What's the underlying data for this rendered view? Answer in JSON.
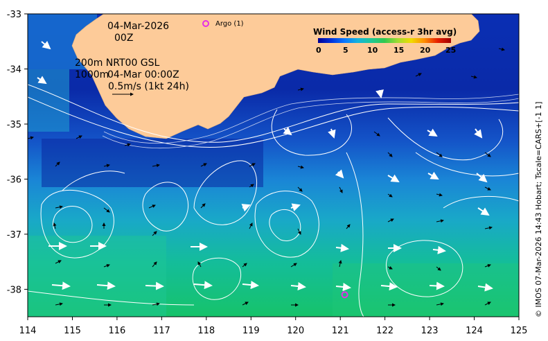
{
  "map": {
    "date_line": "04-Mar-2026",
    "time_line": "00Z",
    "depth_line_1": "200m  NRT00 GSL",
    "depth_line_2_depth": "1000m",
    "depth_line_2_time": "04-Mar 00:00Z",
    "scale_label": "0.5m/s (1kt 24h)",
    "argo_label": "Argo (1)",
    "credit": "© IMOS 07-Mar-2026 14:43 Hobart; Tscale=CARS+[-1 1]",
    "lon_range": [
      114,
      125
    ],
    "lat_range": [
      -38.5,
      -33
    ],
    "x_ticks": [
      "114",
      "115",
      "116",
      "117",
      "118",
      "119",
      "120",
      "121",
      "122",
      "123",
      "124",
      "125"
    ],
    "y_ticks": [
      "-33",
      "-34",
      "-35",
      "-36",
      "-37",
      "-38"
    ],
    "argo_float": {
      "lon": 121.1,
      "lat": -38.1
    },
    "colors": {
      "land": "#fdcb99",
      "argo": "#e62ee6",
      "contour": "#ffffff",
      "arrow_strong": "#ffffff",
      "arrow_weak": "#000000"
    }
  },
  "legend": {
    "title": "Wind Speed (access-r 3hr avg)",
    "ticks": [
      "0",
      "5",
      "10",
      "15",
      "20",
      "25"
    ],
    "colormap": [
      "#000096",
      "#0032dc",
      "#0a78ff",
      "#14b4dc",
      "#1ec896",
      "#32c850",
      "#a0dc32",
      "#f0dc00",
      "#ff8c00",
      "#e61e00",
      "#a00000"
    ]
  }
}
